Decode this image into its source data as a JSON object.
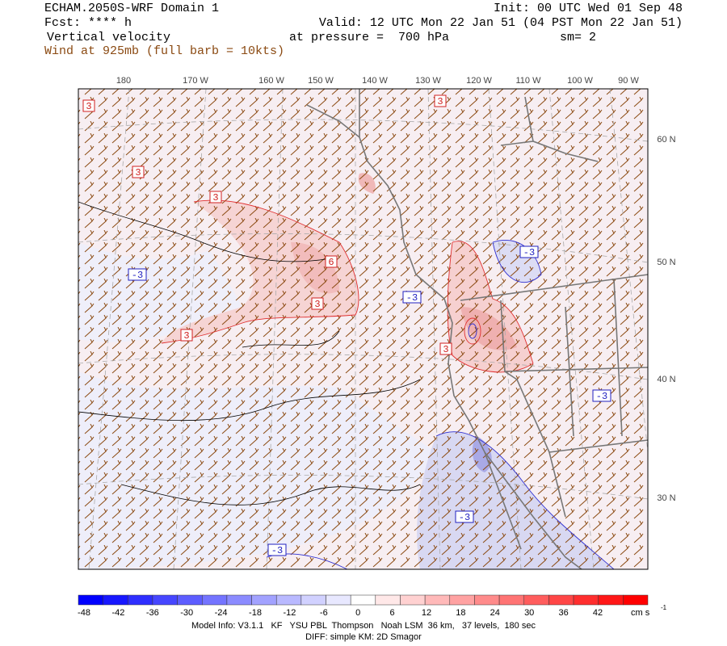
{
  "header": {
    "title": "ECHAM.2050S-WRF Domain 1",
    "init": "Init: 00 UTC Wed 01 Sep 48",
    "fcst": "Fcst: **** h",
    "valid": "Valid: 12 UTC Mon 22 Jan 51 (04 PST Mon 22 Jan 51)",
    "field": "Vertical velocity",
    "pressure": "at pressure =  700 hPa",
    "smoothing": "sm= 2",
    "wind": "Wind at 925mb (full barb = 10kts)"
  },
  "map": {
    "lon_labels": [
      "180",
      "170 W",
      "160 W",
      "150 W",
      "140 W",
      "130 W",
      "120 W",
      "110 W",
      "100 W",
      "90 W"
    ],
    "lat_labels": [
      "60 N",
      "50 N",
      "40 N",
      "30 N"
    ],
    "contour_labels": [
      3,
      3,
      3,
      3,
      6,
      3,
      3,
      3,
      -3,
      -3,
      -3,
      -3,
      -3,
      -3
    ]
  },
  "colorbar": {
    "labels": [
      -48,
      -42,
      -36,
      -30,
      -24,
      -18,
      -12,
      -6,
      0,
      6,
      12,
      18,
      24,
      30,
      36,
      42
    ],
    "units": "cm s",
    "units_exponent": "-1"
  },
  "footer": {
    "model_info": "Model Info: V3.1.1   KF   YSU PBL  Thompson   Noah LSM  36 km,   37 levels,  180 sec",
    "diff": "DIFF: simple KM: 2D Smagor"
  }
}
